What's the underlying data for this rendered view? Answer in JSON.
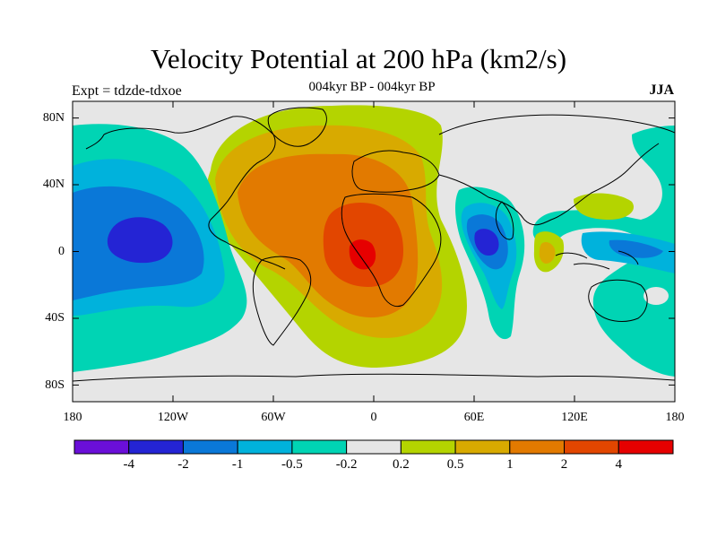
{
  "header": {
    "title": "Velocity Potential at 200 hPa (km2/s)",
    "subtitle": "004kyr BP - 004kyr BP",
    "left_label": "Expt = tdzde-tdxoe",
    "right_label": "JJA"
  },
  "axes": {
    "lat_ticks": [
      "80N",
      "40N",
      "0",
      "40S",
      "80S"
    ],
    "lon_ticks": [
      "180",
      "120W",
      "60W",
      "0",
      "60E",
      "120E",
      "180"
    ]
  },
  "colorbar": {
    "colors": [
      "#6a0fd8",
      "#2424d4",
      "#0a78d8",
      "#00b2dc",
      "#00d4b4",
      "#e6e6e6",
      "#b4d400",
      "#d8aa00",
      "#e27a00",
      "#e24600",
      "#e60000"
    ],
    "labels": [
      "-4",
      "-2",
      "-1",
      "-0.5",
      "-0.2",
      "0.2",
      "0.5",
      "1",
      "2",
      "4"
    ]
  },
  "map": {
    "projection": "cylindrical-equidistant",
    "lon_range": [
      -180,
      180
    ],
    "lat_range": [
      -90,
      90
    ],
    "background_color": "#e6e6e6",
    "coastline_color": "#000000"
  }
}
